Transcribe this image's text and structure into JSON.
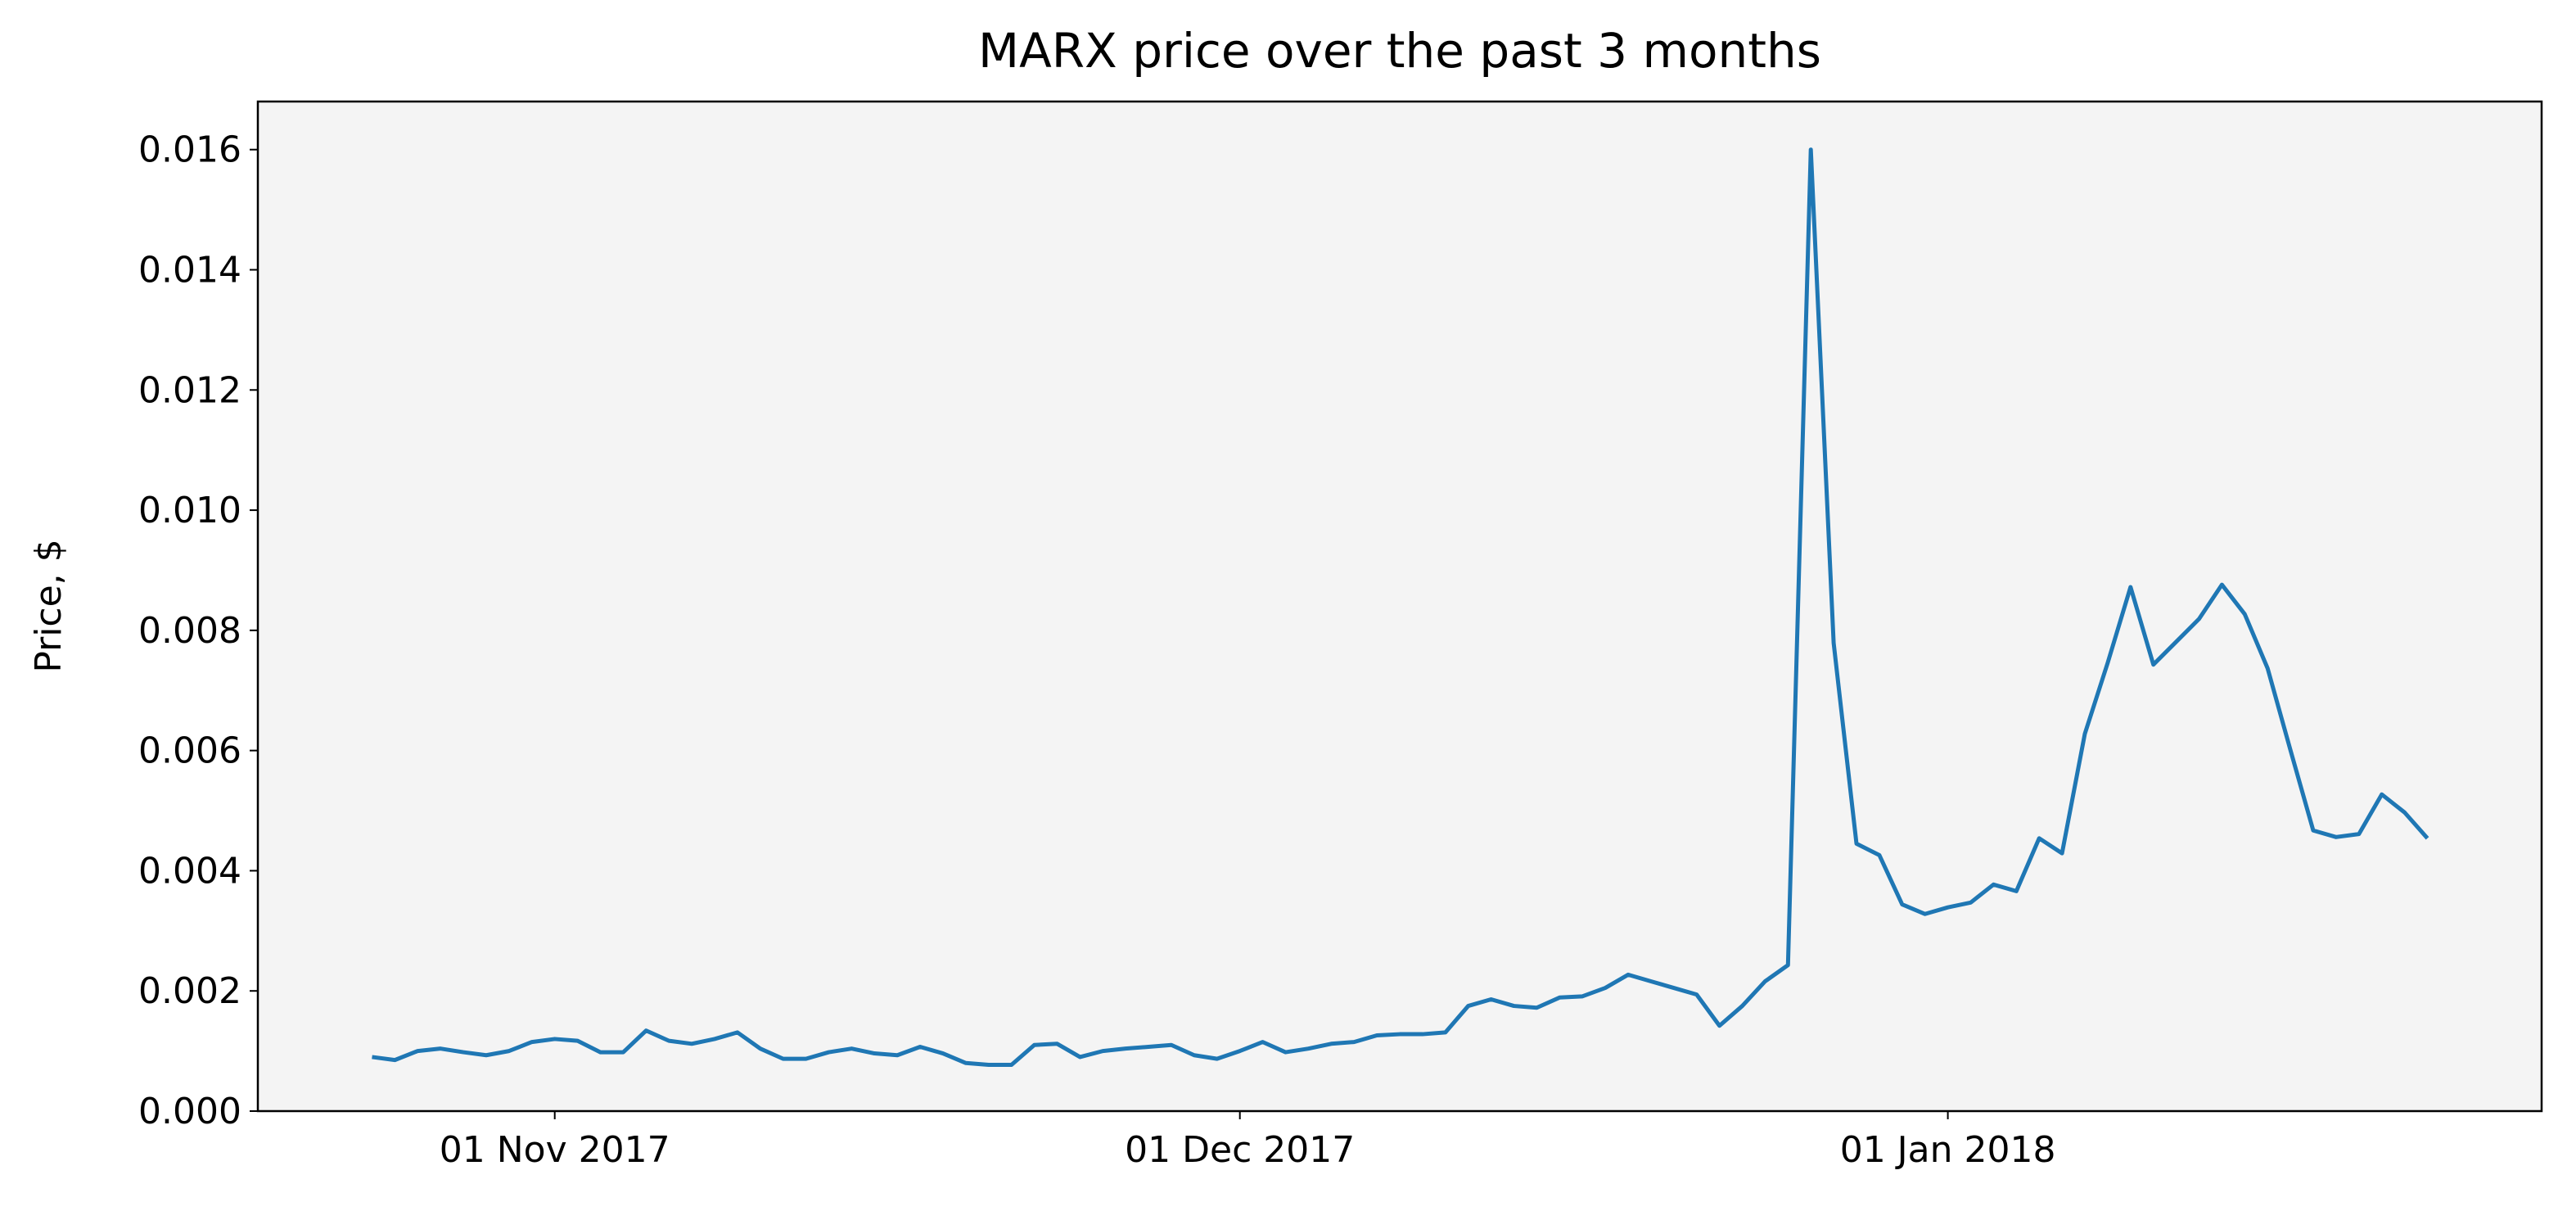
{
  "chart_data": {
    "type": "line",
    "title": "MARX price over the past 3 months",
    "ylabel": "Price, $",
    "x": [
      "2017-10-24",
      "2017-10-25",
      "2017-10-26",
      "2017-10-27",
      "2017-10-28",
      "2017-10-29",
      "2017-10-30",
      "2017-10-31",
      "2017-11-01",
      "2017-11-02",
      "2017-11-03",
      "2017-11-04",
      "2017-11-05",
      "2017-11-06",
      "2017-11-07",
      "2017-11-08",
      "2017-11-09",
      "2017-11-10",
      "2017-11-11",
      "2017-11-12",
      "2017-11-13",
      "2017-11-14",
      "2017-11-15",
      "2017-11-16",
      "2017-11-17",
      "2017-11-18",
      "2017-11-19",
      "2017-11-20",
      "2017-11-21",
      "2017-11-22",
      "2017-11-23",
      "2017-11-24",
      "2017-11-25",
      "2017-11-26",
      "2017-11-27",
      "2017-11-28",
      "2017-11-29",
      "2017-11-30",
      "2017-12-01",
      "2017-12-02",
      "2017-12-03",
      "2017-12-04",
      "2017-12-05",
      "2017-12-06",
      "2017-12-07",
      "2017-12-08",
      "2017-12-09",
      "2017-12-10",
      "2017-12-11",
      "2017-12-12",
      "2017-12-13",
      "2017-12-14",
      "2017-12-15",
      "2017-12-16",
      "2017-12-17",
      "2017-12-18",
      "2017-12-19",
      "2017-12-20",
      "2017-12-21",
      "2017-12-22",
      "2017-12-23",
      "2017-12-24",
      "2017-12-25",
      "2017-12-26",
      "2017-12-27",
      "2017-12-28",
      "2017-12-29",
      "2017-12-30",
      "2017-12-31",
      "2018-01-01",
      "2018-01-02",
      "2018-01-03",
      "2018-01-04",
      "2018-01-05",
      "2018-01-06",
      "2018-01-07",
      "2018-01-08",
      "2018-01-09",
      "2018-01-10",
      "2018-01-11",
      "2018-01-12",
      "2018-01-13",
      "2018-01-14",
      "2018-01-15",
      "2018-01-16",
      "2018-01-17",
      "2018-01-18",
      "2018-01-19",
      "2018-01-20",
      "2018-01-21",
      "2018-01-22"
    ],
    "series": [
      {
        "color": "#1f77b4",
        "values": [
          0.0009,
          0.00085,
          0.001,
          0.00104,
          0.00098,
          0.00093,
          0.001,
          0.00115,
          0.0012,
          0.00117,
          0.00098,
          0.00098,
          0.00134,
          0.00117,
          0.00112,
          0.0012,
          0.00131,
          0.00104,
          0.00087,
          0.00087,
          0.00098,
          0.00104,
          0.00096,
          0.00093,
          0.00107,
          0.00096,
          0.0008,
          0.00077,
          0.00077,
          0.0011,
          0.00112,
          0.0009,
          0.001,
          0.00104,
          0.00107,
          0.0011,
          0.00093,
          0.00087,
          0.001,
          0.00115,
          0.00098,
          0.00104,
          0.00112,
          0.00115,
          0.00126,
          0.00128,
          0.00128,
          0.00131,
          0.00175,
          0.00186,
          0.00175,
          0.00172,
          0.00189,
          0.00191,
          0.00205,
          0.00227,
          0.00216,
          0.00205,
          0.00194,
          0.00142,
          0.00175,
          0.00216,
          0.00243,
          0.016,
          0.00779,
          0.00445,
          0.00426,
          0.00344,
          0.00328,
          0.00339,
          0.00347,
          0.00377,
          0.00366,
          0.00454,
          0.00429,
          0.00628,
          0.00746,
          0.00872,
          0.00743,
          0.00781,
          0.00819,
          0.00876,
          0.00827,
          0.00737,
          0.00601,
          0.00467,
          0.00456,
          0.00461,
          0.00527,
          0.00497,
          0.00454
        ]
      }
    ],
    "xlim": [
      "2017-10-19",
      "2018-01-27"
    ],
    "xticks": [
      {
        "value": "2017-11-01",
        "label": "01 Nov 2017"
      },
      {
        "value": "2017-12-01",
        "label": "01 Dec 2017"
      },
      {
        "value": "2018-01-01",
        "label": "01 Jan 2018"
      }
    ],
    "ylim": [
      0,
      0.0168
    ],
    "yticks": [
      {
        "value": 0,
        "label": "0.000"
      },
      {
        "value": 0.002,
        "label": "0.002"
      },
      {
        "value": 0.004,
        "label": "0.004"
      },
      {
        "value": 0.006,
        "label": "0.006"
      },
      {
        "value": 0.008,
        "label": "0.008"
      },
      {
        "value": 0.01,
        "label": "0.010"
      },
      {
        "value": 0.012,
        "label": "0.012"
      },
      {
        "value": 0.014,
        "label": "0.014"
      },
      {
        "value": 0.016,
        "label": "0.016"
      }
    ],
    "background": "#f4f4f4"
  }
}
